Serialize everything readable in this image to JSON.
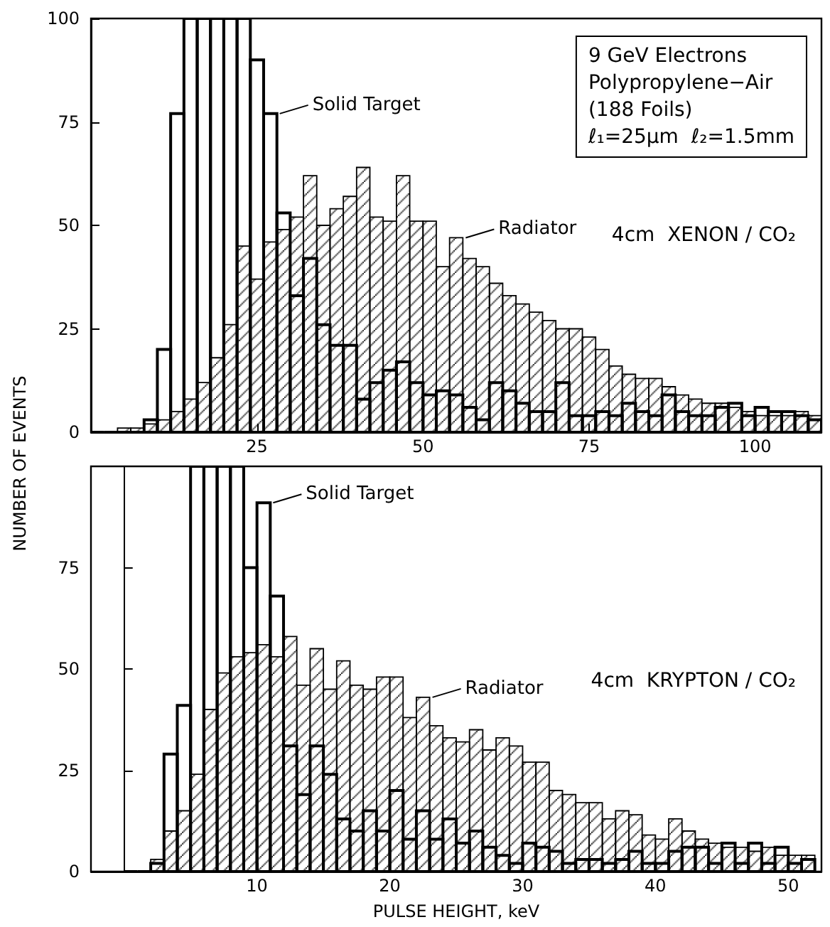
{
  "chart_data": [
    {
      "type": "histogram",
      "ylabel": "NUMBER OF EVENTS",
      "xlim": [
        0,
        110
      ],
      "xticks": [
        25,
        50,
        75,
        100
      ],
      "ylim": [
        0,
        100
      ],
      "yticks": [
        0,
        25,
        50,
        75,
        100
      ],
      "grid": false,
      "legend": "top",
      "bins": [
        0,
        2,
        4,
        6,
        8,
        10,
        12,
        14,
        16,
        18,
        20,
        22,
        24,
        26,
        28,
        30,
        32,
        34,
        36,
        38,
        40,
        42,
        44,
        46,
        48,
        50,
        52,
        54,
        56,
        58,
        60,
        62,
        64,
        66,
        68,
        70,
        72,
        74,
        76,
        78,
        80,
        82,
        84,
        86,
        88,
        90,
        92,
        94,
        96,
        98,
        100,
        102,
        104,
        106,
        108,
        110
      ],
      "series": [
        {
          "name": "Radiator",
          "color": "#000000",
          "values": [
            0,
            0,
            1,
            1,
            2,
            3,
            5,
            8,
            12,
            18,
            26,
            45,
            37,
            46,
            49,
            52,
            62,
            50,
            54,
            57,
            64,
            52,
            51,
            62,
            51,
            51,
            40,
            47,
            42,
            40,
            36,
            33,
            31,
            29,
            27,
            25,
            25,
            23,
            20,
            16,
            14,
            13,
            13,
            11,
            9,
            8,
            7,
            7,
            6,
            5,
            4,
            4,
            4,
            5,
            4
          ]
        },
        {
          "name": "Solid Target",
          "color": "#000000",
          "values": [
            0,
            0,
            0,
            0,
            3,
            20,
            77,
            100,
            100,
            100,
            100,
            100,
            90,
            77,
            53,
            33,
            42,
            26,
            21,
            21,
            8,
            12,
            15,
            17,
            12,
            9,
            10,
            9,
            6,
            3,
            12,
            10,
            7,
            5,
            5,
            12,
            4,
            4,
            5,
            4,
            7,
            5,
            4,
            9,
            5,
            4,
            4,
            6,
            7,
            4,
            6,
            5,
            5,
            4,
            3
          ]
        }
      ],
      "annotations": [
        "9 GeV Electrons\nPolypropylene−Air\n(188 Foils)\nℓ₁=25μm  ℓ₂=1.5mm",
        "4cm  XENON / CO₂"
      ]
    },
    {
      "type": "histogram",
      "xlabel": "PULSE HEIGHT, keV",
      "xlim": [
        -2.5,
        52.5
      ],
      "xticks": [
        10,
        20,
        30,
        40,
        50
      ],
      "ylim": [
        0,
        100
      ],
      "yticks": [
        0,
        25,
        50,
        75
      ],
      "grid": false,
      "legend": "top",
      "bins": [
        0,
        1,
        2,
        3,
        4,
        5,
        6,
        7,
        8,
        9,
        10,
        11,
        12,
        13,
        14,
        15,
        16,
        17,
        18,
        19,
        20,
        21,
        22,
        23,
        24,
        25,
        26,
        27,
        28,
        29,
        30,
        31,
        32,
        33,
        34,
        35,
        36,
        37,
        38,
        39,
        40,
        41,
        42,
        43,
        44,
        45,
        46,
        47,
        48,
        49,
        50,
        51,
        52
      ],
      "series": [
        {
          "name": "Radiator",
          "color": "#000000",
          "values": [
            0,
            0,
            3,
            10,
            15,
            24,
            40,
            49,
            53,
            54,
            56,
            53,
            58,
            46,
            55,
            45,
            52,
            46,
            45,
            48,
            48,
            38,
            43,
            36,
            33,
            32,
            35,
            30,
            33,
            31,
            27,
            27,
            20,
            19,
            17,
            17,
            13,
            15,
            14,
            9,
            8,
            13,
            10,
            8,
            7,
            6,
            6,
            5,
            6,
            4,
            4,
            4
          ]
        },
        {
          "name": "Solid Target",
          "color": "#000000",
          "values": [
            0,
            0,
            2,
            29,
            41,
            100,
            100,
            100,
            100,
            75,
            91,
            68,
            31,
            19,
            31,
            24,
            13,
            10,
            15,
            10,
            20,
            8,
            15,
            8,
            13,
            7,
            10,
            6,
            4,
            2,
            7,
            6,
            5,
            2,
            3,
            3,
            2,
            3,
            5,
            2,
            2,
            5,
            6,
            6,
            2,
            7,
            2,
            7,
            2,
            6,
            2,
            3
          ]
        }
      ],
      "annotations": [
        "4cm  KRYPTON / CO₂"
      ]
    }
  ]
}
